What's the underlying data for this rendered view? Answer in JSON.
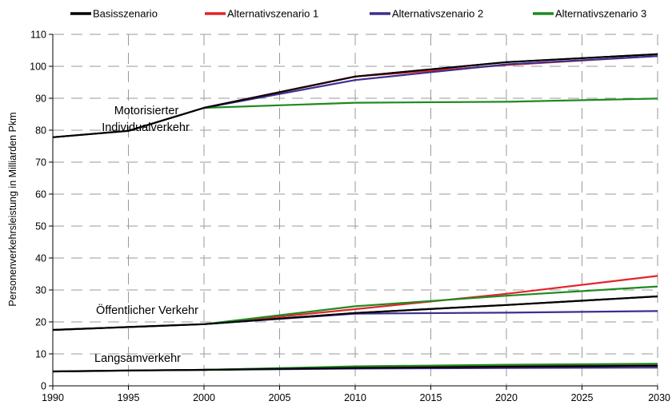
{
  "chart_data": {
    "type": "line",
    "ylabel": "Personenverkehrsleistung in Milliarden Pkm",
    "xlim": [
      1990,
      2030
    ],
    "ylim": [
      0,
      110
    ],
    "x_ticks": [
      1990,
      1995,
      2000,
      2005,
      2010,
      2015,
      2020,
      2025,
      2030
    ],
    "y_ticks": [
      0,
      10,
      20,
      30,
      40,
      50,
      60,
      70,
      80,
      90,
      100,
      110
    ],
    "grid": "dashed",
    "legend_position": "top",
    "legend": [
      {
        "name": "Basisszenario",
        "color": "#000000"
      },
      {
        "name": "Alternativszenario 1",
        "color": "#e3242b"
      },
      {
        "name": "Alternativszenario 2",
        "color": "#3b2f8f"
      },
      {
        "name": "Alternativszenario 3",
        "color": "#1f8a1f"
      }
    ],
    "annotations": [
      {
        "lines": [
          "Motorisierter",
          "Individualverkehr"
        ]
      },
      {
        "lines": [
          "Öffentlicher Verkehr"
        ]
      },
      {
        "lines": [
          "Langsamverkehr"
        ]
      }
    ],
    "groups": [
      {
        "group": "Motorisierter Individualverkehr",
        "series": [
          {
            "name": "Basisszenario",
            "color": "#000000",
            "x": [
              1990,
              1995,
              2000,
              2010,
              2020,
              2030
            ],
            "y": [
              77.8,
              79.8,
              87.0,
              96.8,
              101.3,
              103.8
            ]
          },
          {
            "name": "Alternativszenario 1",
            "color": "#e3242b",
            "x": [
              2000,
              2010,
              2020,
              2030
            ],
            "y": [
              87.0,
              96.8,
              100.4,
              103.2
            ]
          },
          {
            "name": "Alternativszenario 2",
            "color": "#3b2f8f",
            "x": [
              2000,
              2010,
              2020,
              2030
            ],
            "y": [
              87.0,
              95.7,
              100.6,
              103.2
            ]
          },
          {
            "name": "Alternativszenario 3",
            "color": "#1f8a1f",
            "x": [
              2000,
              2010,
              2020,
              2030
            ],
            "y": [
              87.0,
              88.6,
              88.9,
              89.9
            ]
          }
        ]
      },
      {
        "group": "Öffentlicher Verkehr",
        "series": [
          {
            "name": "Basisszenario",
            "color": "#000000",
            "x": [
              1990,
              1995,
              2000,
              2010,
              2020,
              2030
            ],
            "y": [
              17.5,
              18.4,
              19.3,
              22.8,
              25.3,
              28.0
            ]
          },
          {
            "name": "Alternativszenario 1",
            "color": "#e3242b",
            "x": [
              2000,
              2010,
              2020,
              2030
            ],
            "y": [
              19.3,
              24.0,
              28.8,
              34.4
            ]
          },
          {
            "name": "Alternativszenario 2",
            "color": "#3b2f8f",
            "x": [
              2000,
              2010,
              2020,
              2030
            ],
            "y": [
              19.3,
              22.6,
              22.9,
              23.4
            ]
          },
          {
            "name": "Alternativszenario 3",
            "color": "#1f8a1f",
            "x": [
              2000,
              2010,
              2020,
              2030
            ],
            "y": [
              19.3,
              24.9,
              28.2,
              31.1
            ]
          }
        ]
      },
      {
        "group": "Langsamverkehr",
        "series": [
          {
            "name": "Basisszenario",
            "color": "#000000",
            "x": [
              1990,
              1995,
              2000,
              2010,
              2020,
              2030
            ],
            "y": [
              4.5,
              4.8,
              5.0,
              5.6,
              6.0,
              6.3
            ]
          },
          {
            "name": "Alternativszenario 1",
            "color": "#e3242b",
            "x": [
              2000,
              2010,
              2020,
              2030
            ],
            "y": [
              5.0,
              5.9,
              6.5,
              6.8
            ]
          },
          {
            "name": "Alternativszenario 2",
            "color": "#3b2f8f",
            "x": [
              2000,
              2010,
              2020,
              2030
            ],
            "y": [
              5.0,
              5.4,
              5.6,
              5.7
            ]
          },
          {
            "name": "Alternativszenario 3",
            "color": "#1f8a1f",
            "x": [
              2000,
              2010,
              2020,
              2030
            ],
            "y": [
              5.0,
              6.1,
              6.6,
              6.9
            ]
          }
        ]
      }
    ]
  }
}
